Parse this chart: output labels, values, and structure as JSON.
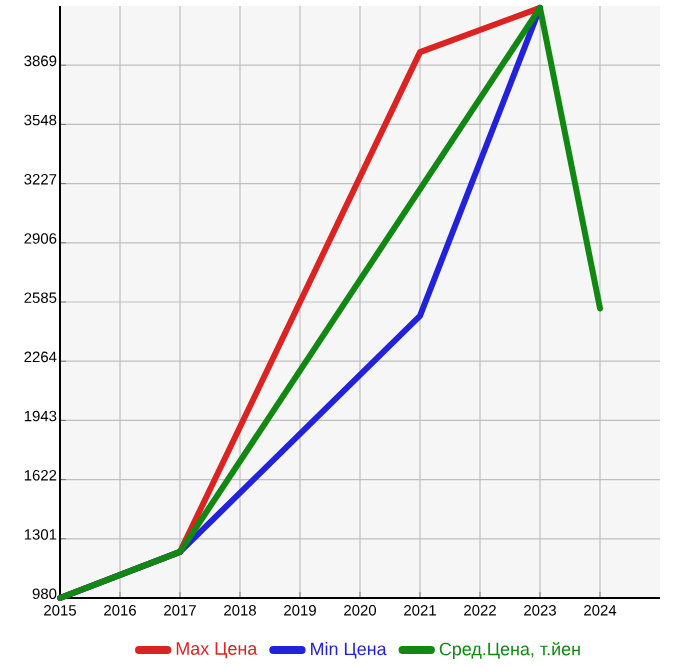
{
  "chart_data": {
    "type": "line",
    "x": [
      2015,
      2017,
      2021,
      2023,
      2024
    ],
    "series": [
      {
        "name": "Max Цена",
        "color": "#dd2222",
        "values": [
          980,
          1230,
          3940,
          4180,
          null
        ]
      },
      {
        "name": "Min Цена",
        "color": "#2222dd",
        "values": [
          980,
          1230,
          2510,
          4180,
          null
        ]
      },
      {
        "name": "Сред.Цена, т.йен",
        "color": "#118811",
        "values": [
          980,
          1230,
          null,
          4180,
          2550
        ]
      }
    ],
    "xlim": [
      2015,
      2025
    ],
    "ylim": [
      980,
      4190
    ],
    "xticks": [
      2015,
      2016,
      2017,
      2018,
      2019,
      2020,
      2021,
      2022,
      2023,
      2024
    ],
    "yticks": [
      980,
      1301,
      1622,
      1943,
      2264,
      2585,
      2906,
      3227,
      3548,
      3869
    ],
    "grid": true,
    "legend": "bottom",
    "marker": "none",
    "line_style": "solid"
  }
}
